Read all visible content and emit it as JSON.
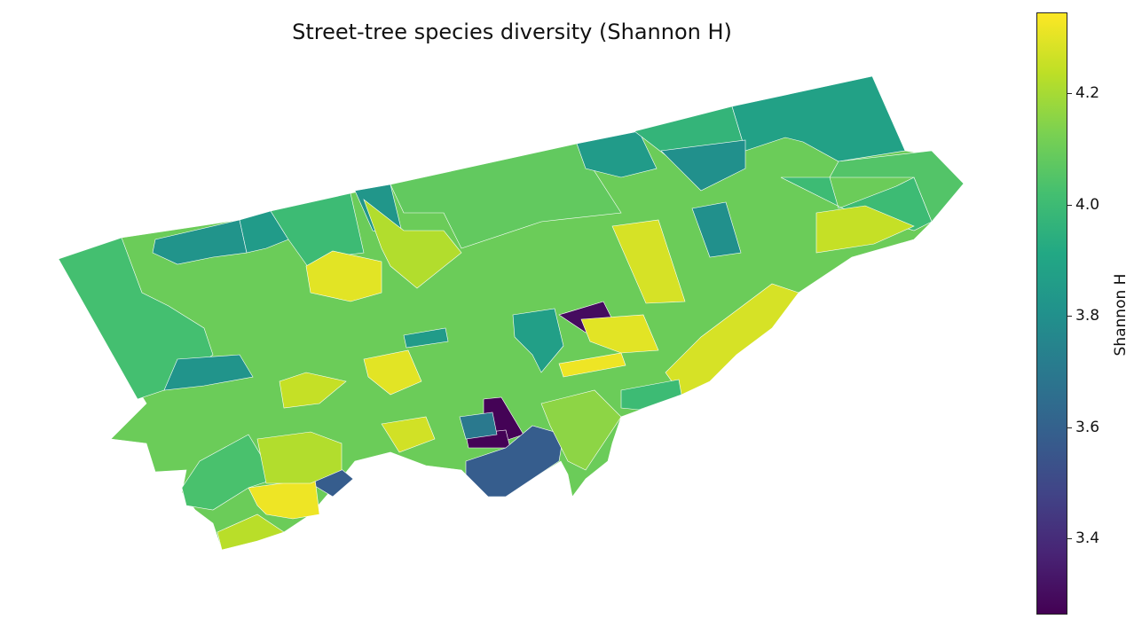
{
  "title": "Street-tree species diversity (Shannon H)",
  "colorbar": {
    "label": "Shannon H",
    "cmap": "viridis",
    "vmin": 3.265,
    "vmax": 4.345,
    "ticks": [
      "3.4",
      "3.6",
      "3.8",
      "4.0",
      "4.2"
    ]
  },
  "base_value": 4.1,
  "neighbourhood_values": [
    4.02,
    3.82,
    3.85,
    4.0,
    3.83,
    4.3,
    4.22,
    4.08,
    3.85,
    3.97,
    3.88,
    3.8,
    4.05,
    4.0,
    4.25,
    4.28,
    3.8,
    4.28,
    3.3,
    4.32,
    3.27,
    3.27,
    3.58,
    3.58,
    4.32,
    4.23,
    4.03,
    3.82,
    3.87,
    4.3,
    4.25,
    4.22,
    3.7,
    4.16,
    4.0,
    4.3,
    4.27,
    3.85
  ]
}
